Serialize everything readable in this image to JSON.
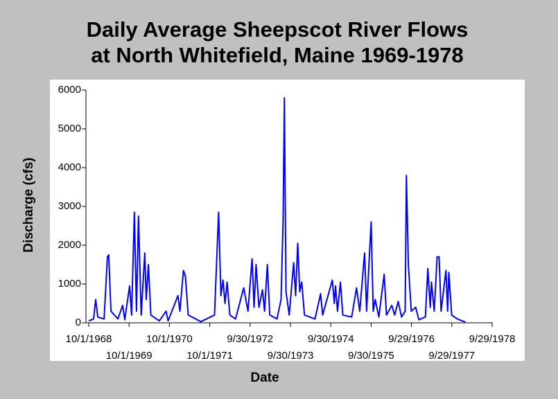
{
  "chart_data": {
    "type": "line",
    "title": [
      "Daily Average Sheepscot River Flows",
      "at North Whitefield, Maine 1969-1978"
    ],
    "x_label": "Date",
    "y_label": "Discharge (cfs)",
    "color": "#0000ff",
    "xlim": [
      "1968-10-01",
      "1978-09-29"
    ],
    "ylim": [
      0,
      6000
    ],
    "yticks": [
      0,
      1000,
      2000,
      3000,
      4000,
      5000,
      6000
    ],
    "xticks": [
      {
        "value": "1968-10-01",
        "label": "10/1/1968"
      },
      {
        "value": "1969-10-01",
        "label": "10/1/1969"
      },
      {
        "value": "1970-10-01",
        "label": "10/1/1970"
      },
      {
        "value": "1971-10-01",
        "label": "10/1/1971"
      },
      {
        "value": "1972-09-30",
        "label": "9/30/1972"
      },
      {
        "value": "1973-09-30",
        "label": "9/30/1973"
      },
      {
        "value": "1974-09-30",
        "label": "9/30/1974"
      },
      {
        "value": "1975-09-30",
        "label": "9/30/1975"
      },
      {
        "value": "1976-09-29",
        "label": "9/29/1976"
      },
      {
        "value": "1977-09-29",
        "label": "9/29/1977"
      },
      {
        "value": "1978-09-29",
        "label": "9/29/1978"
      }
    ],
    "x": [
      "1968-10-01",
      "1968-11-14",
      "1968-12-03",
      "1968-12-22",
      "1969-02-17",
      "1969-03-19",
      "1969-03-31",
      "1969-04-20",
      "1969-06-22",
      "1969-08-04",
      "1969-08-23",
      "1969-10-06",
      "1969-10-24",
      "1969-11-18",
      "1969-12-07",
      "1969-12-25",
      "1970-01-19",
      "1970-02-20",
      "1970-03-05",
      "1970-03-25",
      "1970-04-16",
      "1970-07-01",
      "1970-09-01",
      "1970-09-19",
      "1970-12-17",
      "1971-01-04",
      "1971-02-05",
      "1971-02-23",
      "1971-03-20",
      "1971-07-12",
      "1971-11-13",
      "1971-12-20",
      "1972-01-10",
      "1972-01-29",
      "1972-02-16",
      "1972-03-06",
      "1972-03-31",
      "1972-05-21",
      "1972-08-03",
      "1972-09-11",
      "1972-10-18",
      "1972-11-05",
      "1972-11-23",
      "1972-12-19",
      "1973-01-20",
      "1973-02-08",
      "1973-03-05",
      "1973-03-27",
      "1973-05-31",
      "1973-07-07",
      "1973-07-26",
      "1973-08-06",
      "1973-08-21",
      "1973-09-19",
      "1973-10-29",
      "1973-11-16",
      "1973-12-05",
      "1973-12-23",
      "1974-01-10",
      "1974-02-04",
      "1974-05-10",
      "1974-06-30",
      "1974-07-18",
      "1974-10-14",
      "1974-11-01",
      "1974-11-12",
      "1974-11-30",
      "1974-12-26",
      "1975-01-17",
      "1975-04-07",
      "1975-05-21",
      "1975-06-19",
      "1975-08-02",
      "1975-08-20",
      "1975-09-30",
      "1975-10-19",
      "1975-11-06",
      "1975-12-09",
      "1976-01-26",
      "1976-02-16",
      "1976-04-04",
      "1976-04-30",
      "1976-06-01",
      "1976-07-01",
      "1976-08-03",
      "1976-08-14",
      "1976-09-01",
      "1976-09-27",
      "1976-11-06",
      "1976-12-05",
      "1977-02-02",
      "1977-02-24",
      "1977-03-18",
      "1977-03-29",
      "1977-04-23",
      "1977-05-19",
      "1977-06-06",
      "1977-06-24",
      "1977-08-07",
      "1977-08-22",
      "1977-09-02",
      "1977-09-28",
      "1977-11-18",
      "1978-01-30"
    ],
    "values": [
      50,
      100,
      600,
      150,
      100,
      1700,
      1750,
      300,
      100,
      450,
      80,
      950,
      200,
      2850,
      300,
      2750,
      200,
      1800,
      600,
      1500,
      200,
      50,
      300,
      50,
      700,
      300,
      1350,
      1200,
      200,
      30,
      200,
      2850,
      700,
      1100,
      500,
      1050,
      200,
      100,
      900,
      300,
      1650,
      400,
      1500,
      400,
      850,
      300,
      1500,
      200,
      100,
      600,
      2700,
      5800,
      800,
      200,
      1550,
      700,
      2050,
      800,
      1050,
      200,
      100,
      750,
      200,
      1100,
      500,
      950,
      300,
      1050,
      200,
      150,
      900,
      300,
      1800,
      300,
      2600,
      300,
      600,
      150,
      1250,
      200,
      450,
      200,
      550,
      150,
      300,
      3800,
      1500,
      300,
      400,
      80,
      150,
      1400,
      400,
      1050,
      300,
      1700,
      1700,
      300,
      1350,
      300,
      1300,
      200,
      100,
      20
    ]
  }
}
